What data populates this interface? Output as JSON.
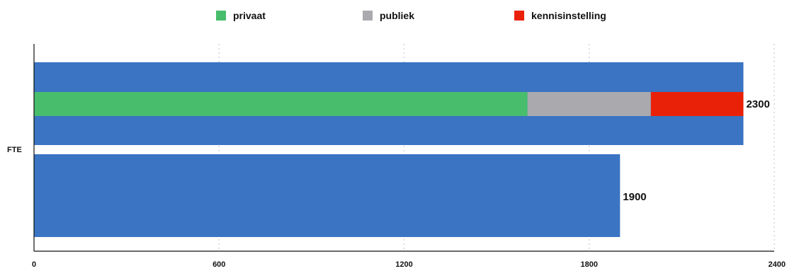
{
  "chart_data": {
    "type": "bar",
    "orientation": "horizontal",
    "category_label": "FTE",
    "xlim": [
      0,
      2400
    ],
    "x_ticks": [
      "0",
      "600",
      "1200",
      "1800",
      "2400"
    ],
    "grid": "vertical dotted",
    "legend_position": "top",
    "bars": [
      {
        "value": 2300,
        "value_label": "2300",
        "color": "#3a74c3",
        "segments": [
          {
            "name": "privaat",
            "value": 1600,
            "color": "#48bd6c"
          },
          {
            "name": "publiek",
            "value": 400,
            "color": "#aaa9ad"
          },
          {
            "name": "kennisinstelling",
            "value": 300,
            "color": "#ea2109"
          }
        ]
      },
      {
        "value": 1900,
        "value_label": "1900",
        "color": "#3a74c3"
      }
    ],
    "legend": [
      {
        "label": "privaat",
        "color": "#48bd6c"
      },
      {
        "label": "publiek",
        "color": "#aaa9ad"
      },
      {
        "label": "kennisinstelling",
        "color": "#ea2109"
      }
    ]
  }
}
